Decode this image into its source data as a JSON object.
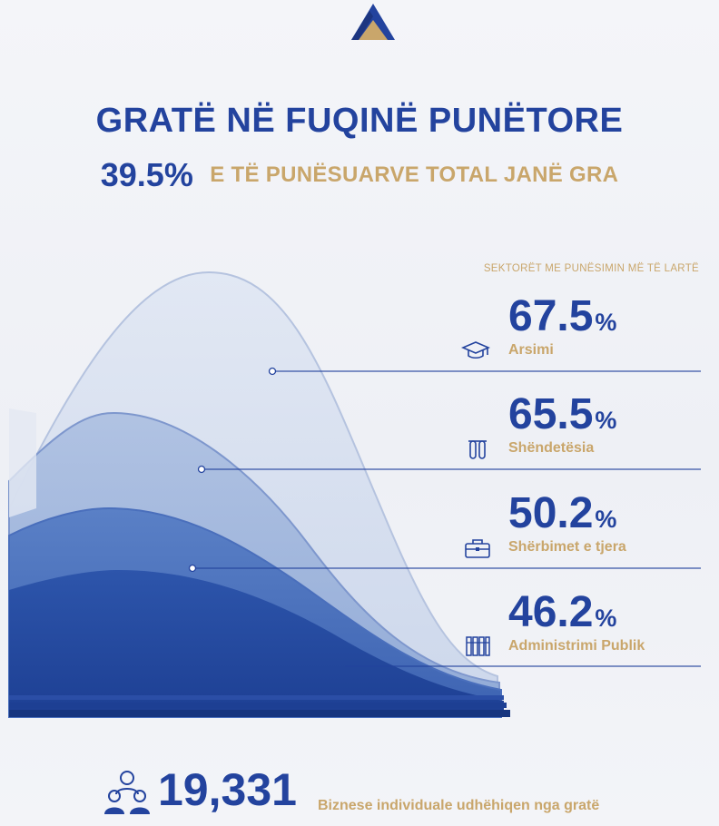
{
  "header": {
    "title": "GRATË NË FUQINË PUNËTORE",
    "highlight_value": "39.5%",
    "highlight_text": "E TË PUNËSUARVE TOTAL JANË GRA"
  },
  "sectors": {
    "heading": "SEKTORËT ME PUNËSIMIN MË TË LARTË",
    "items": [
      {
        "value": "67.5",
        "unit": "%",
        "label": "Arsimi",
        "icon": "graduation-cap-icon"
      },
      {
        "value": "65.5",
        "unit": "%",
        "label": "Shëndetësia",
        "icon": "test-tubes-icon"
      },
      {
        "value": "50.2",
        "unit": "%",
        "label": "Shërbimet e tjera",
        "icon": "briefcase-icon"
      },
      {
        "value": "46.2",
        "unit": "%",
        "label": "Administrimi Publik",
        "icon": "binders-icon"
      }
    ]
  },
  "footer": {
    "value": "19,331",
    "caption": "Biznese individuale udhëhiqen nga gratë",
    "icon": "people-group-icon"
  },
  "colors": {
    "primary_blue": "#23439e",
    "gold": "#c9a66b"
  }
}
